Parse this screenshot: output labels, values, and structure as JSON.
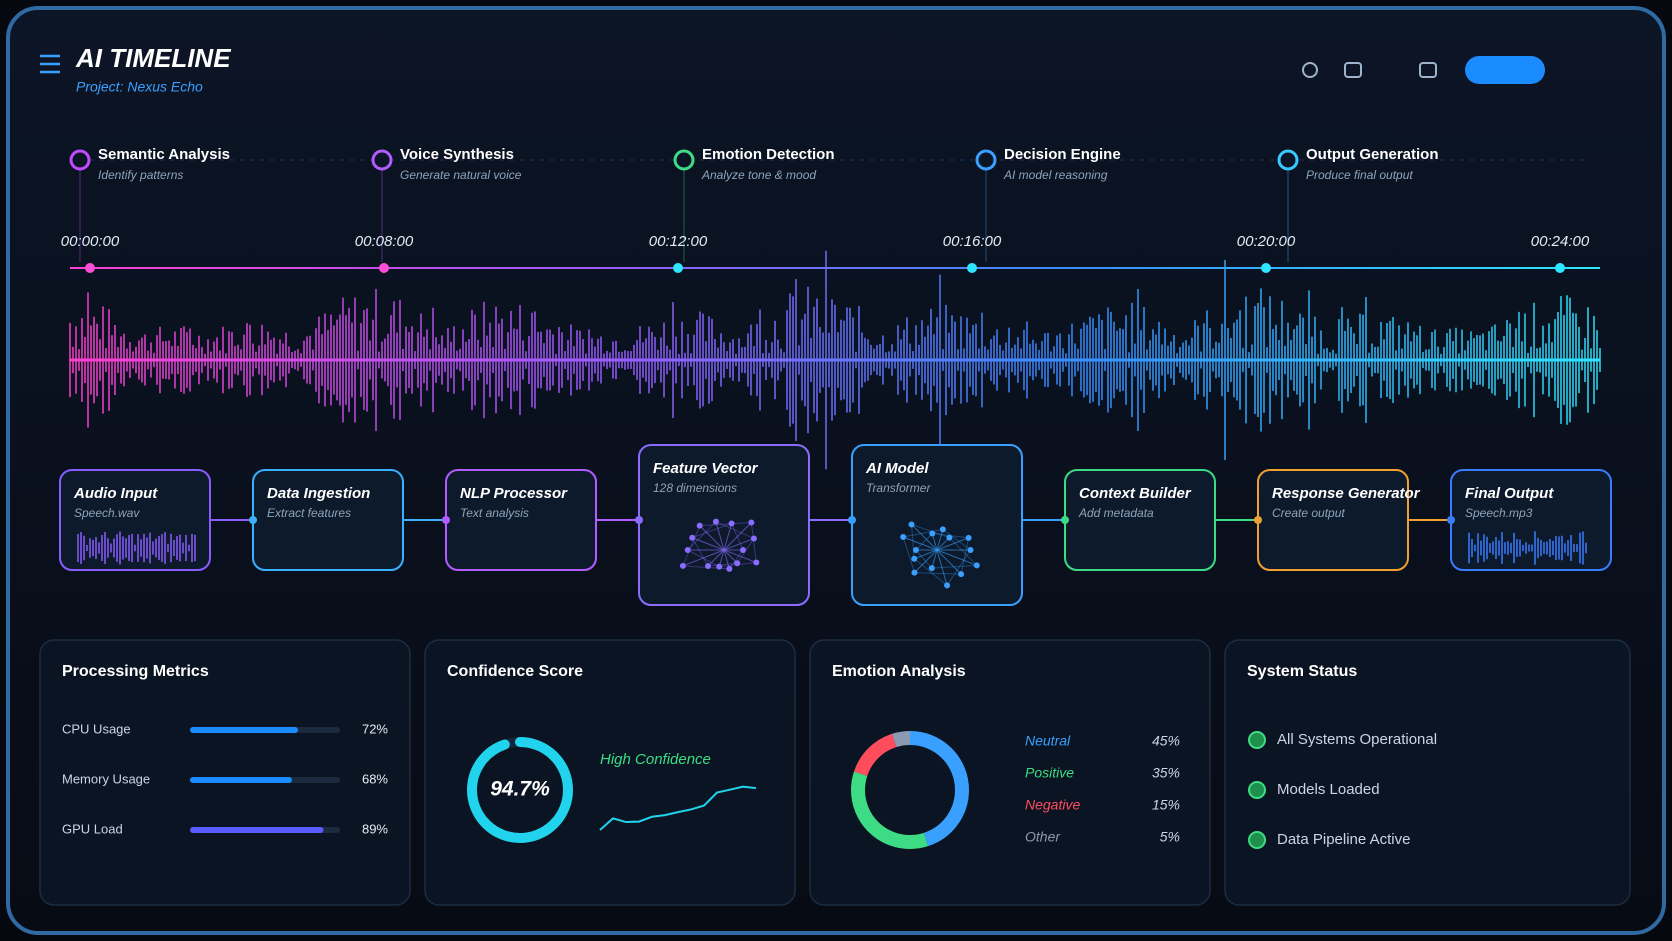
{
  "header": {
    "title": "AI TIMELINE",
    "subtitle": "Project: Nexus Echo"
  },
  "stages": [
    {
      "title": "Semantic Analysis",
      "subtitle": "Identify patterns"
    },
    {
      "title": "Voice Synthesis",
      "subtitle": "Generate natural voice"
    },
    {
      "title": "Emotion Detection",
      "subtitle": "Analyze tone & mood"
    },
    {
      "title": "Decision Engine",
      "subtitle": "AI model reasoning"
    },
    {
      "title": "Output Generation",
      "subtitle": "Produce final output"
    }
  ],
  "timeline": {
    "ticks": [
      "00:00:00",
      "00:08:00",
      "00:12:00",
      "00:16:00",
      "00:20:00",
      "00:24:00"
    ]
  },
  "pipeline": [
    {
      "title": "Audio Input",
      "subtitle": "Speech.wav"
    },
    {
      "title": "Data Ingestion",
      "subtitle": "Extract features"
    },
    {
      "title": "NLP Processor",
      "subtitle": "Text analysis"
    },
    {
      "title": "Feature Vector",
      "subtitle": "128 dimensions"
    },
    {
      "title": "AI Model",
      "subtitle": "Transformer"
    },
    {
      "title": "Context Builder",
      "subtitle": "Add metadata"
    },
    {
      "title": "Response Generator",
      "subtitle": "Create output"
    },
    {
      "title": "Final Output",
      "subtitle": "Speech.mp3"
    }
  ],
  "processing_metrics": {
    "title": "Processing Metrics",
    "items": [
      {
        "label": "CPU Usage",
        "value": 72,
        "value_label": "72%"
      },
      {
        "label": "Memory Usage",
        "value": 68,
        "value_label": "68%"
      },
      {
        "label": "GPU Load",
        "value": 89,
        "value_label": "89%"
      }
    ]
  },
  "confidence_score": {
    "title": "Confidence Score",
    "value": 94.7,
    "value_label": "94.7%",
    "status": "High Confidence"
  },
  "emotion_analysis": {
    "title": "Emotion Analysis",
    "items": [
      {
        "label": "Neutral",
        "value": 45,
        "value_label": "45%"
      },
      {
        "label": "Positive",
        "value": 35,
        "value_label": "35%"
      },
      {
        "label": "Negative",
        "value": 15,
        "value_label": "15%"
      },
      {
        "label": "Other",
        "value": 5,
        "value_label": "5%"
      }
    ]
  },
  "system_status": {
    "title": "System Status",
    "items": [
      "All Systems Operational",
      "Models Loaded",
      "Data Pipeline Active"
    ]
  }
}
